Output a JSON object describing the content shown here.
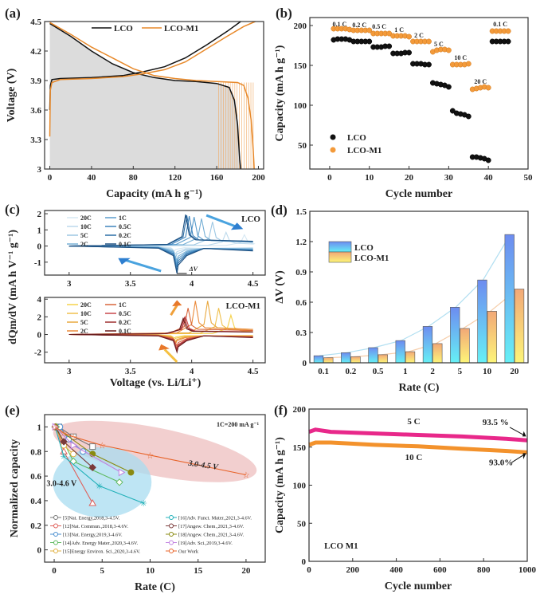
{
  "chart_data": [
    {
      "panel": "(a)",
      "type": "line",
      "xlabel": "Capacity (mA h g⁻¹)",
      "ylabel": "Voltage (V)",
      "xlim": [
        -5,
        205
      ],
      "ylim": [
        3.0,
        4.5
      ],
      "xticks": [
        0,
        40,
        80,
        120,
        160,
        200
      ],
      "yticks": [
        3,
        3.3,
        3.6,
        3.9,
        4.2,
        4.5
      ],
      "ytick_labels": [
        "3",
        "3.3",
        "3.6",
        "3.9",
        "4.2",
        "4.5"
      ],
      "legend": [
        "LCO",
        "LCO-M1"
      ],
      "legend_position": "top",
      "series": [
        {
          "name": "LCO",
          "color": "#111111",
          "curve": "charge",
          "x": [
            0,
            0.5,
            2,
            10,
            40,
            70,
            90,
            110,
            130,
            150,
            170,
            183
          ],
          "y": [
            3.6,
            3.85,
            3.91,
            3.92,
            3.93,
            3.95,
            3.99,
            4.04,
            4.13,
            4.26,
            4.4,
            4.5
          ]
        },
        {
          "name": "LCO",
          "color": "#111111",
          "curve": "discharge",
          "x": [
            0,
            20,
            40,
            60,
            80,
            100,
            120,
            140,
            160,
            172,
            177,
            180,
            182,
            183
          ],
          "y": [
            4.48,
            4.35,
            4.2,
            4.07,
            3.98,
            3.93,
            3.9,
            3.89,
            3.87,
            3.83,
            3.7,
            3.45,
            3.1,
            3.0
          ]
        },
        {
          "name": "LCO-M1",
          "color": "#e8892a",
          "curve": "charge",
          "x": [
            0,
            0.5,
            2,
            10,
            40,
            70,
            90,
            110,
            130,
            150,
            170,
            186,
            197
          ],
          "y": [
            3.33,
            3.8,
            3.88,
            3.91,
            3.92,
            3.94,
            3.97,
            4.01,
            4.09,
            4.22,
            4.35,
            4.45,
            4.5
          ]
        },
        {
          "name": "LCO-M1",
          "color": "#e8892a",
          "curve": "discharge",
          "x": [
            0,
            20,
            40,
            60,
            80,
            100,
            120,
            140,
            160,
            180,
            186,
            190,
            193,
            195,
            196
          ],
          "y": [
            4.49,
            4.37,
            4.24,
            4.13,
            4.02,
            3.95,
            3.92,
            3.9,
            3.89,
            3.88,
            3.85,
            3.72,
            3.5,
            3.2,
            3.0
          ]
        }
      ]
    },
    {
      "panel": "(b)",
      "type": "scatter",
      "xlabel": "Cycle number",
      "ylabel": "Capacity (mA h g⁻¹)",
      "xlim": [
        -5,
        50
      ],
      "ylim": [
        20,
        210
      ],
      "xticks": [
        0,
        10,
        20,
        30,
        40,
        50
      ],
      "yticks": [
        50,
        100,
        150,
        200
      ],
      "legend": [
        "LCO",
        "LCO-M1"
      ],
      "legend_position": "bottom-left",
      "annotations": [
        {
          "text": "0.1 C",
          "x": 2.5,
          "y": 199
        },
        {
          "text": "0.2 C",
          "x": 7.5,
          "y": 198
        },
        {
          "text": "0.5 C",
          "x": 12.5,
          "y": 196
        },
        {
          "text": "1 C",
          "x": 17.5,
          "y": 192
        },
        {
          "text": "2 C",
          "x": 22.5,
          "y": 185
        },
        {
          "text": "5 C",
          "x": 27.5,
          "y": 174
        },
        {
          "text": "10 C",
          "x": 33,
          "y": 157
        },
        {
          "text": "20 C",
          "x": 38,
          "y": 127
        },
        {
          "text": "0.1 C",
          "x": 43,
          "y": 199
        }
      ],
      "series": [
        {
          "name": "LCO",
          "color": "#111111",
          "x": [
            1,
            2,
            3,
            4,
            5,
            6,
            7,
            8,
            9,
            10,
            11,
            12,
            13,
            14,
            15,
            16,
            17,
            18,
            19,
            20,
            21,
            22,
            23,
            24,
            25,
            26,
            27,
            28,
            29,
            30,
            31,
            32,
            33,
            34,
            35,
            36,
            37,
            38,
            39,
            40,
            41,
            42,
            43,
            44,
            45
          ],
          "y": [
            182,
            183,
            183,
            183,
            182,
            180,
            180,
            180,
            180,
            180,
            173,
            173,
            173,
            174,
            174,
            165,
            165,
            165,
            166,
            166,
            152,
            152,
            152,
            151,
            151,
            128,
            127,
            126,
            125,
            123,
            93,
            90,
            89,
            88,
            86,
            35,
            35,
            34,
            33,
            31,
            180,
            180,
            180,
            180,
            180
          ]
        },
        {
          "name": "LCO-M1",
          "color": "#f39a3a",
          "x": [
            1,
            2,
            3,
            4,
            5,
            6,
            7,
            8,
            9,
            10,
            11,
            12,
            13,
            14,
            15,
            16,
            17,
            18,
            19,
            20,
            21,
            22,
            23,
            24,
            25,
            26,
            27,
            28,
            29,
            30,
            31,
            32,
            33,
            34,
            35,
            36,
            37,
            38,
            39,
            40,
            41,
            42,
            43,
            44,
            45
          ],
          "y": [
            196,
            196,
            196,
            196,
            195,
            194,
            194,
            194,
            194,
            194,
            190,
            190,
            190,
            190,
            190,
            187,
            187,
            187,
            187,
            186,
            180,
            180,
            180,
            180,
            180,
            167,
            169,
            170,
            170,
            169,
            151,
            151,
            151,
            151,
            152,
            120,
            121,
            122,
            123,
            122,
            193,
            193,
            193,
            193,
            193
          ]
        }
      ]
    },
    {
      "panel": "(c)",
      "type": "line",
      "xlabel": "Voltage (vs. Li/Li⁺)",
      "ylabel": "dQm/dV (mA h V⁻¹ g⁻¹)",
      "subplots": [
        {
          "name": "LCO",
          "xlim": [
            2.8,
            4.6
          ],
          "ylim": [
            -1.8,
            2.2
          ],
          "xticks": [
            3,
            3.5,
            4,
            4.5
          ],
          "yticks": [
            -1,
            0,
            1,
            2
          ],
          "annotation": "ΔV",
          "rates": [
            "20C",
            "10C",
            "5C",
            "2C",
            "1C",
            "0.5C",
            "0.2C",
            "0.1C"
          ],
          "colors": [
            "#d6e8f3",
            "#bcd9ec",
            "#9dc7e3",
            "#77b0d6",
            "#5a9ccc",
            "#3f84bc",
            "#2b6da6",
            "#1c4f80"
          ],
          "oxidation_peak_V": [
            4.43,
            4.28,
            4.17,
            4.08,
            4.02,
            3.98,
            3.96,
            3.95
          ],
          "oxidation_peak_height": [
            0.7,
            0.85,
            1.5,
            1.7,
            1.8,
            1.85,
            1.9,
            1.95
          ],
          "reduction_peak_V": [
            3.86,
            3.87,
            3.87,
            3.88,
            3.88,
            3.88,
            3.88,
            3.88
          ],
          "reduction_peak_height": [
            -0.3,
            -0.5,
            -0.7,
            -0.9,
            -1.1,
            -1.3,
            -1.5,
            -1.7
          ]
        },
        {
          "name": "LCO-M1",
          "xlim": [
            2.8,
            4.6
          ],
          "ylim": [
            -3.2,
            4.2
          ],
          "xticks": [
            3,
            3.5,
            4,
            4.5
          ],
          "yticks": [
            -2,
            0,
            2,
            4
          ],
          "rates": [
            "20C",
            "10C",
            "5C",
            "2C",
            "1C",
            "0.5C",
            "0.2C",
            "0.1C"
          ],
          "colors": [
            "#f5d24a",
            "#f0c04d",
            "#e9a83e",
            "#ea8a3b",
            "#d8653a",
            "#c9474a",
            "#9e2f2f",
            "#6b1e1e"
          ],
          "oxidation_peak_V": [
            4.32,
            4.22,
            4.13,
            4.03,
            3.97,
            3.95,
            3.94,
            3.93
          ],
          "oxidation_peak_height": [
            2.2,
            3.0,
            3.8,
            3.8,
            3.0,
            2.0,
            1.9,
            1.8
          ],
          "reduction_peak_V": [
            3.86,
            3.86,
            3.87,
            3.87,
            3.88,
            3.88,
            3.88,
            3.88
          ],
          "reduction_peak_height": [
            -0.4,
            -0.6,
            -0.8,
            -1.0,
            -1.3,
            -1.6,
            -1.8,
            -2.0
          ]
        }
      ]
    },
    {
      "panel": "(d)",
      "type": "bar",
      "xlabel": "Rate (C)",
      "ylabel": "ΔV (V)",
      "ylim": [
        0,
        1.5
      ],
      "yticks": [
        0,
        0.3,
        0.6,
        0.9,
        1.2,
        1.5
      ],
      "categories": [
        "0.1",
        "0.2",
        "0.5",
        "1",
        "2",
        "5",
        "10",
        "20"
      ],
      "legend_position": "top-left",
      "series": [
        {
          "name": "LCO",
          "color_top": "#6d8cf0",
          "color_bottom": "#66f0f5",
          "values": [
            0.07,
            0.1,
            0.15,
            0.22,
            0.36,
            0.55,
            0.82,
            1.27
          ]
        },
        {
          "name": "LCO-M1",
          "color_top": "#f2a877",
          "color_bottom": "#fdf578",
          "values": [
            0.05,
            0.06,
            0.08,
            0.11,
            0.19,
            0.34,
            0.51,
            0.73
          ]
        }
      ],
      "fit_curves": [
        {
          "name": "LCO fit",
          "color": "#a8dcf0"
        },
        {
          "name": "LCO-M1 fit",
          "color": "#f5c8a0"
        }
      ]
    },
    {
      "panel": "(e)",
      "type": "line",
      "xlabel": "Rate (C)",
      "ylabel": "Normalized capacity",
      "xlim": [
        -1,
        22
      ],
      "ylim": [
        -0.1,
        1.1
      ],
      "xticks": [
        0,
        5,
        10,
        15,
        20
      ],
      "yticks": [
        0,
        0.2,
        0.4,
        0.6,
        0.8,
        1
      ],
      "annotations": [
        {
          "text": "1C=200 mA g⁻¹",
          "position": "top-right"
        },
        {
          "text": "3.0-4.5 V",
          "color": "#d32f2f"
        },
        {
          "text": "3.0-4.6 V",
          "color": "#1f7ab8"
        }
      ],
      "legend_position": "bottom",
      "series": [
        {
          "name": "[5]Nat. Energy,2018,3-4.5V.",
          "color": "#777777",
          "marker": "square-open",
          "x": [
            0.5,
            2,
            4
          ],
          "y": [
            1.0,
            0.92,
            0.84
          ]
        },
        {
          "name": "[12]Nat. Commun.,2018,3-4.6V.",
          "color": "#e0605a",
          "marker": "triangle-open",
          "x": [
            0.2,
            1,
            4
          ],
          "y": [
            1.0,
            0.8,
            0.38
          ]
        },
        {
          "name": "[13]Nat. Energy,2019,3-4.6V.",
          "color": "#4a8fd0",
          "marker": "circle-open",
          "x": [
            0.6,
            1.5,
            3
          ],
          "y": [
            1.0,
            0.9,
            0.8
          ]
        },
        {
          "name": "[14]Adv. Energy Mater.,2020,3-4.6V.",
          "color": "#5cb85c",
          "marker": "diamond-open",
          "x": [
            0.2,
            2,
            6.8
          ],
          "y": [
            1.0,
            0.72,
            0.55
          ]
        },
        {
          "name": "[15]Energy Environ. Sci.,2020,3-4.6V.",
          "color": "#e0b040",
          "marker": "circle-open",
          "x": [
            0.1,
            1,
            2
          ],
          "y": [
            1.0,
            0.85,
            0.78
          ]
        },
        {
          "name": "[16]Adv. Funct. Mater.,2021,3-4.6V.",
          "color": "#20b0b8",
          "marker": "asterisk",
          "x": [
            0.1,
            1,
            4.7,
            9.3
          ],
          "y": [
            1.0,
            0.76,
            0.52,
            0.38
          ]
        },
        {
          "name": "[17]Angew. Chem.,2021,3-4.6V.",
          "color": "#7a3a3a",
          "marker": "diamond-filled",
          "x": [
            0.1,
            1,
            4
          ],
          "y": [
            1.0,
            0.88,
            0.67
          ]
        },
        {
          "name": "[18]Angew. Chem.,2021,3-4.6V.",
          "color": "#8a8a10",
          "marker": "circle-filled",
          "x": [
            0.1,
            4,
            8
          ],
          "y": [
            1.0,
            0.78,
            0.63
          ]
        },
        {
          "name": "[19]Adv. Sci.,2019,3-4.6V.",
          "color": "#c080e0",
          "marker": "triangle-right-open",
          "x": [
            0.1,
            2,
            7
          ],
          "y": [
            1.0,
            0.85,
            0.63
          ]
        },
        {
          "name": "Our Work",
          "color": "#e8642a",
          "marker": "star-open",
          "x": [
            0.1,
            1,
            2,
            5,
            10,
            20
          ],
          "y": [
            1.0,
            0.95,
            0.92,
            0.85,
            0.77,
            0.61
          ]
        }
      ]
    },
    {
      "panel": "(f)",
      "type": "line",
      "xlabel": "Cycle number",
      "ylabel": "Capacity (mA h g⁻¹)",
      "xlim": [
        0,
        1000
      ],
      "ylim": [
        0,
        200
      ],
      "xticks": [
        0,
        200,
        400,
        600,
        800,
        1000
      ],
      "yticks": [
        0,
        50,
        100,
        150,
        200
      ],
      "annotations": [
        {
          "text": "5 C"
        },
        {
          "text": "10 C"
        },
        {
          "text": "93.5 %"
        },
        {
          "text": "93.0%"
        },
        {
          "text": "LCO M1"
        }
      ],
      "series": [
        {
          "name": "5 C",
          "color": "#e8288a",
          "x": [
            0,
            30,
            100,
            300,
            500,
            700,
            900,
            1000
          ],
          "y": [
            170,
            173,
            170,
            168,
            166,
            164,
            161,
            159
          ]
        },
        {
          "name": "10 C",
          "color": "#f3922c",
          "x": [
            0,
            30,
            100,
            300,
            500,
            700,
            900,
            1000
          ],
          "y": [
            153,
            156,
            156,
            153,
            151,
            148,
            145,
            143
          ]
        }
      ]
    }
  ]
}
